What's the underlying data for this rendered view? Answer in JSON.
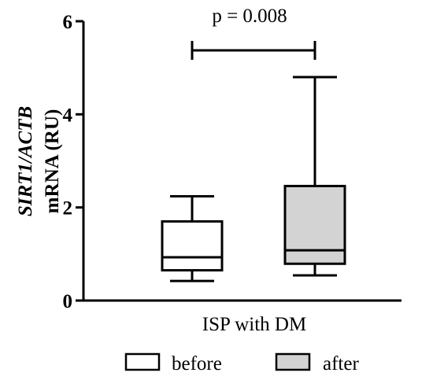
{
  "chart_data": {
    "type": "box",
    "ylabel": {
      "gene": "SIRT1/ACTB",
      "suffix": "mRNA (RU)"
    },
    "xlabel": "ISP with DM",
    "ylim": [
      0,
      6
    ],
    "yticks": [
      "0",
      "2",
      "4",
      "6"
    ],
    "annotation": "p = 0.008",
    "series": [
      {
        "name": "before",
        "min": 0.42,
        "q1": 0.65,
        "median": 0.93,
        "q3": 1.7,
        "max": 2.24,
        "color": "#ffffff"
      },
      {
        "name": "after",
        "min": 0.54,
        "q1": 0.79,
        "median": 1.08,
        "q3": 2.46,
        "max": 4.8,
        "color": "#d3d3d3"
      }
    ],
    "legend": {
      "position": "bottom"
    }
  }
}
